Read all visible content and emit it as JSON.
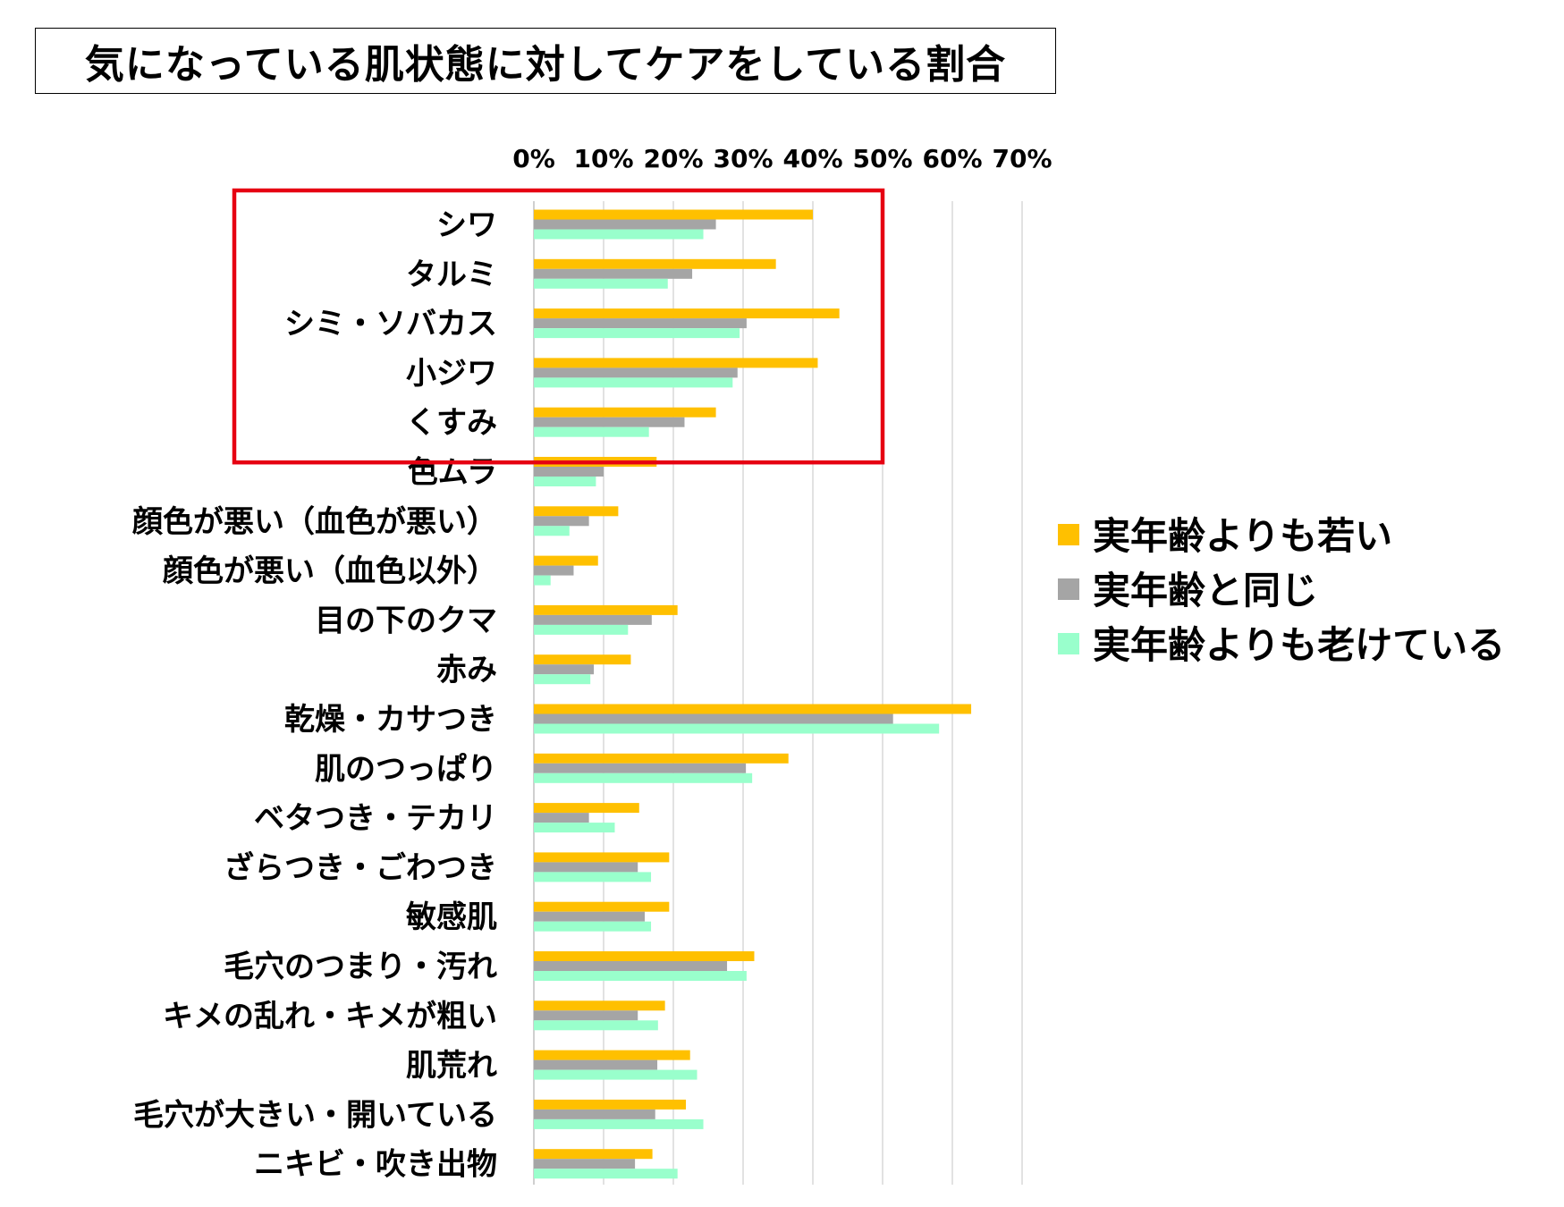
{
  "chart_data": {
    "type": "bar",
    "orientation": "horizontal",
    "title": "気になっている肌状態に対してケアをしている割合",
    "xlim": [
      0,
      70
    ],
    "x_ticks": [
      "0%",
      "10%",
      "20%",
      "30%",
      "40%",
      "50%",
      "60%",
      "70%"
    ],
    "x_tick_values": [
      0,
      10,
      20,
      30,
      40,
      50,
      60,
      70
    ],
    "grid": true,
    "legend_position": "right",
    "categories": [
      "シワ",
      "タルミ",
      "シミ・ソバカス",
      "小ジワ",
      "くすみ",
      "色ムラ",
      "顔色が悪い（血色が悪い）",
      "顔色が悪い（血色以外）",
      "目の下のクマ",
      "赤み",
      "乾燥・カサつき",
      "肌のつっぱり",
      "ベタつき・テカリ",
      "ざらつき・ごわつき",
      "敏感肌",
      "毛穴のつまり・汚れ",
      "キメの乱れ・キメが粗い",
      "肌荒れ",
      "毛穴が大きい・開いている",
      "ニキビ・吹き出物"
    ],
    "series": [
      {
        "name": "実年齢よりも若い",
        "color": "#FFC000",
        "values": [
          40,
          34.7,
          43.8,
          40.7,
          26.1,
          17.6,
          12.1,
          9.2,
          20.6,
          13.9,
          62.7,
          36.5,
          15.1,
          19.4,
          19.4,
          31.6,
          18.8,
          22.4,
          21.8,
          17
        ]
      },
      {
        "name": "実年齢と同じ",
        "color": "#A5A5A5",
        "values": [
          26.1,
          22.7,
          30.5,
          29.2,
          21.6,
          10,
          7.9,
          5.7,
          16.9,
          8.6,
          51.5,
          30.4,
          7.9,
          14.9,
          15.9,
          27.7,
          14.9,
          17.7,
          17.4,
          14.5
        ]
      },
      {
        "name": "実年齢よりも老けている",
        "color": "#99FFCC",
        "values": [
          24.3,
          19.2,
          29.5,
          28.5,
          16.5,
          8.9,
          5.1,
          2.4,
          13.5,
          8.1,
          58.1,
          31.3,
          11.6,
          16.8,
          16.8,
          30.5,
          17.8,
          23.4,
          24.3,
          20.6
        ]
      }
    ]
  },
  "highlight": {
    "color": "#E60012"
  }
}
